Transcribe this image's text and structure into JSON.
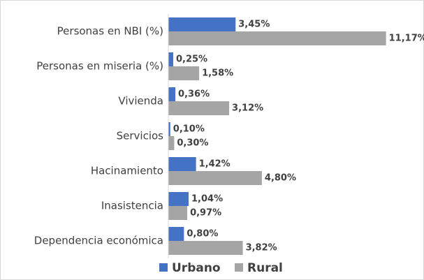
{
  "chart_data": {
    "type": "bar",
    "orientation": "horizontal",
    "categories": [
      "Personas en NBI (%)",
      "Personas en miseria (%)",
      "Vivienda",
      "Servicios",
      "Hacinamiento",
      "Inasistencia",
      "Dependencia económica"
    ],
    "series": [
      {
        "name": "Urbano",
        "color": "#4472c4",
        "values": [
          3.45,
          0.25,
          0.36,
          0.1,
          1.42,
          1.04,
          0.8
        ],
        "value_labels": [
          "3,45%",
          "0,25%",
          "0,36%",
          "0,10%",
          "1,42%",
          "1,04%",
          "0,80%"
        ]
      },
      {
        "name": "Rural",
        "color": "#a5a5a5",
        "values": [
          11.17,
          1.58,
          3.12,
          0.3,
          4.8,
          0.97,
          3.82
        ],
        "value_labels": [
          "11,17%",
          "1,58%",
          "3,12%",
          "0,30%",
          "4,80%",
          "0,97%",
          "3,82%"
        ]
      }
    ],
    "legend": "bottom"
  }
}
